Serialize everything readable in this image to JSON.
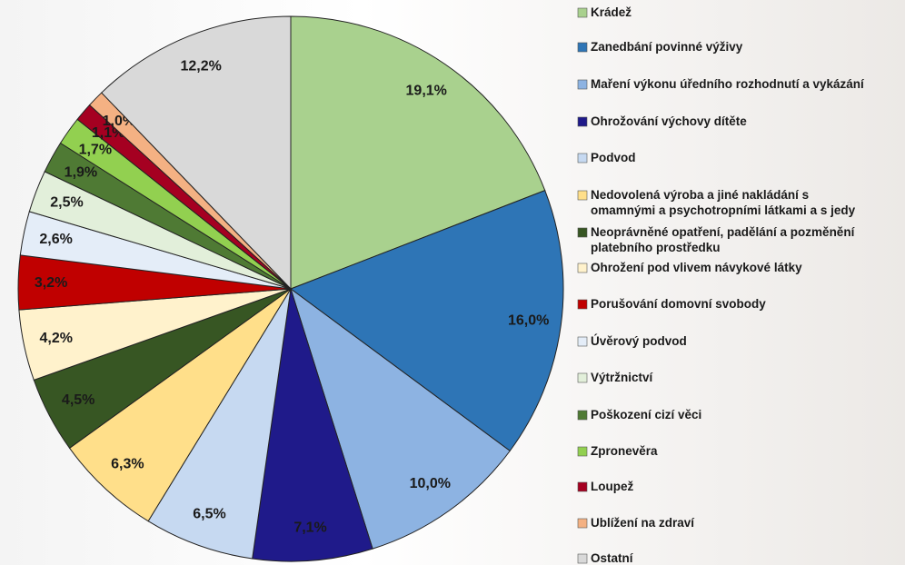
{
  "chart_data": {
    "type": "pie",
    "categories": [
      "Krádež",
      "Zanedbání povinné výživy",
      "Maření výkonu úředního rozhodnutí a vykázání",
      "Ohrožování výchovy dítěte",
      "Podvod",
      "Nedovolená výroba a jiné nakládání s\nomamnými a psychotropními látkami a s jedy",
      "Neoprávněné opatření, padělání a pozměnění\nplatebního prostředku",
      "Ohrožení pod vlivem návykové látky",
      "Porušování domovní svobody",
      "Úvěrový podvod",
      "Výtržnictví",
      "Poškození cizí věci",
      "Zpronevěra",
      "Loupež",
      "Ublížení na zdraví",
      "Ostatní"
    ],
    "values": [
      19.1,
      16.0,
      10.0,
      7.1,
      6.5,
      6.3,
      4.5,
      4.2,
      3.2,
      2.6,
      2.5,
      1.9,
      1.7,
      1.1,
      1.0,
      12.2
    ],
    "value_labels": [
      "19,1%",
      "16,0%",
      "10,0%",
      "7,1%",
      "6,5%",
      "6,3%",
      "4,5%",
      "4,2%",
      "3,2%",
      "2,6%",
      "2,5%",
      "1,9%",
      "1,7%",
      "1,1%",
      "1,0%",
      "12,2%"
    ],
    "colors": [
      "#a9d18e",
      "#2e75b6",
      "#8db3e2",
      "#1f1a8a",
      "#c6d9f1",
      "#ffdf8a",
      "#375623",
      "#fff2cc",
      "#c00000",
      "#e4edf8",
      "#e2efda",
      "#4f7a34",
      "#92d050",
      "#a50021",
      "#f4b183",
      "#d9d9d9"
    ]
  }
}
